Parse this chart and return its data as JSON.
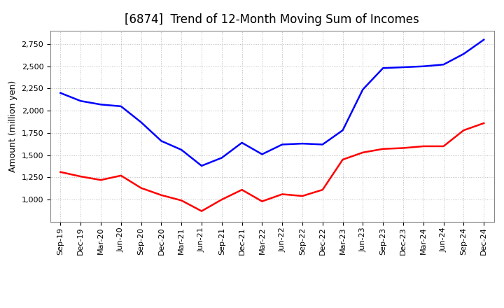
{
  "title": "[6874]  Trend of 12-Month Moving Sum of Incomes",
  "ylabel": "Amount (million yen)",
  "x_labels": [
    "Sep-19",
    "Dec-19",
    "Mar-20",
    "Jun-20",
    "Sep-20",
    "Dec-20",
    "Mar-21",
    "Jun-21",
    "Sep-21",
    "Dec-21",
    "Mar-22",
    "Jun-22",
    "Sep-22",
    "Dec-22",
    "Mar-23",
    "Jun-23",
    "Sep-23",
    "Dec-23",
    "Mar-24",
    "Jun-24",
    "Sep-24",
    "Dec-24"
  ],
  "ordinary_income": [
    2200,
    2110,
    2070,
    2050,
    1870,
    1660,
    1560,
    1380,
    1470,
    1640,
    1510,
    1620,
    1630,
    1620,
    1780,
    2240,
    2480,
    2490,
    2500,
    2520,
    2640,
    2800
  ],
  "net_income": [
    1310,
    1260,
    1220,
    1270,
    1130,
    1050,
    990,
    870,
    1000,
    1110,
    980,
    1060,
    1040,
    1110,
    1450,
    1530,
    1570,
    1580,
    1600,
    1600,
    1780,
    1860
  ],
  "ordinary_color": "#0000FF",
  "net_color": "#FF0000",
  "ylim_min": 750,
  "ylim_max": 2900,
  "yticks": [
    1000,
    1250,
    1500,
    1750,
    2000,
    2250,
    2500,
    2750
  ],
  "background_color": "#FFFFFF",
  "grid_color": "#AAAAAA",
  "title_fontsize": 12,
  "axis_label_fontsize": 9,
  "tick_fontsize": 8,
  "legend_fontsize": 9
}
